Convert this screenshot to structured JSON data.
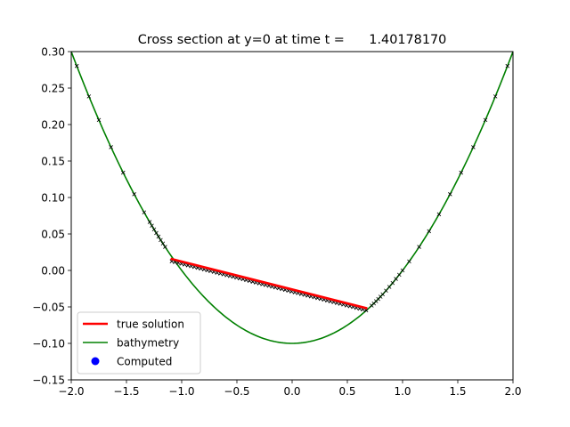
{
  "chart_data": {
    "type": "line",
    "title": "Cross section at y=0 at time t =      1.40178170",
    "xlim": [
      -2.0,
      2.0
    ],
    "ylim": [
      -0.15,
      0.3
    ],
    "xticks": [
      "−2.0",
      "−1.5",
      "−1.0",
      "−0.5",
      "0.0",
      "0.5",
      "1.0",
      "1.5",
      "2.0"
    ],
    "xtick_values": [
      -2.0,
      -1.5,
      -1.0,
      -0.5,
      0.0,
      0.5,
      1.0,
      1.5,
      2.0
    ],
    "yticks": [
      "−0.15",
      "−0.10",
      "−0.05",
      "0.00",
      "0.05",
      "0.10",
      "0.15",
      "0.20",
      "0.25",
      "0.30"
    ],
    "ytick_values": [
      -0.15,
      -0.1,
      -0.05,
      0.0,
      0.05,
      0.1,
      0.15,
      0.2,
      0.25,
      0.3
    ],
    "grid": false,
    "legend_position": "bottom-left",
    "series": [
      {
        "name": "true solution",
        "color": "#ff0000",
        "kind": "line",
        "x": [
          -1.1,
          0.68
        ],
        "y": [
          0.016,
          -0.052
        ]
      },
      {
        "name": "bathymetry",
        "color": "#008000",
        "kind": "line",
        "formula_x": [
          -2.0,
          2.0
        ],
        "x": [
          -2.0,
          -1.75,
          -1.5,
          -1.25,
          -1.0,
          -0.75,
          -0.5,
          -0.25,
          0.0,
          0.25,
          0.5,
          0.75,
          1.0,
          1.25,
          1.5,
          1.75,
          2.0
        ],
        "y": [
          0.3,
          0.2063,
          0.1313,
          0.0781,
          0.025,
          -0.0297,
          -0.075,
          -0.0938,
          -0.1,
          -0.0938,
          -0.075,
          -0.0297,
          0.025,
          0.0781,
          0.1313,
          0.2063,
          0.3
        ]
      },
      {
        "name": "Computed",
        "color": "#0000ff",
        "kind": "scatter",
        "x": [
          -1.08,
          -1.0,
          -0.9,
          -0.8,
          -0.7,
          -0.6,
          -0.5,
          -0.4,
          -0.3,
          -0.2,
          -0.1,
          0.0,
          0.1,
          0.2,
          0.3,
          0.4,
          0.5,
          0.6,
          0.66
        ],
        "y": [
          0.013,
          0.01,
          0.006,
          0.002,
          -0.002,
          -0.006,
          -0.01,
          -0.014,
          -0.018,
          -0.022,
          -0.026,
          -0.03,
          -0.034,
          -0.038,
          -0.042,
          -0.046,
          -0.05,
          -0.053,
          -0.055
        ]
      }
    ]
  }
}
